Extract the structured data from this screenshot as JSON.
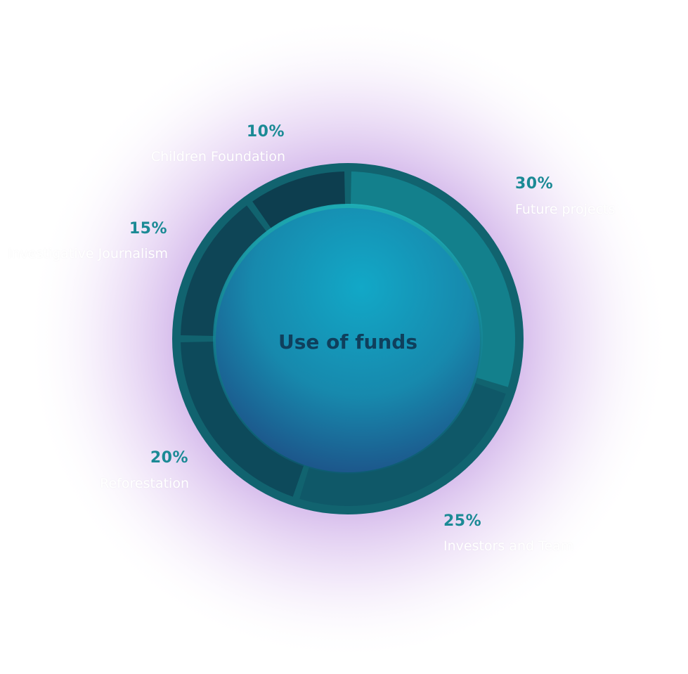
{
  "chart_data": {
    "type": "pie",
    "title": "Use of funds",
    "slices": [
      {
        "label": "Future projects",
        "value": 30,
        "display": "30%",
        "color": "#13808c"
      },
      {
        "label": "Investors and Team",
        "value": 25,
        "display": "25%",
        "color": "#0f5868"
      },
      {
        "label": "Reforestation",
        "value": 20,
        "display": "20%",
        "color": "#0d4a5b"
      },
      {
        "label": "Investigative Journalism",
        "value": 15,
        "display": "15%",
        "color": "#0e4556"
      },
      {
        "label": "Children Foundation",
        "value": 10,
        "display": "10%",
        "color": "#0d3e4f"
      }
    ],
    "legend": "none"
  },
  "colors": {
    "glow": "#9c5fd0",
    "hub_top": "#13a6c6",
    "hub_bottom": "#1b5d92",
    "ring_border": "#136d78",
    "percent_text": "#1b8a95",
    "center_text": "#0f3f5c"
  }
}
